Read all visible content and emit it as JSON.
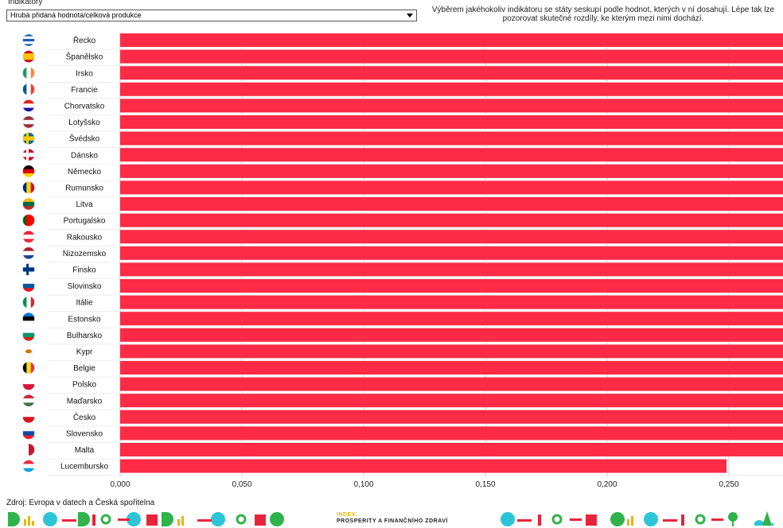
{
  "indicator": {
    "label": "Indikátory",
    "selected": "Hrubá přidaná hodnota/celková produkce"
  },
  "description": "Výběrem jakéhokoliv indikátoru se státy seskupí podle hodnot, kterých v ní dosahují. Lépe tak lze pozorovat skutečné rozdíly, ke kterým mezi nimi dochází.",
  "source": "Zdroj: Evropa v datech a Česká spořitelna",
  "brand": {
    "index": "INDEX",
    "name": "PROSPERITY A FINANČNÍHO ZDRAVÍ"
  },
  "colors": {
    "bar": "#ff2a45",
    "label_bg": "#ffffff",
    "grid": "#bbbbbb"
  },
  "chart_data": {
    "type": "bar",
    "orientation": "horizontal",
    "categories": [
      "Řecko",
      "Španělsko",
      "Irsko",
      "Francie",
      "Chorvatsko",
      "Lotyšsko",
      "Švédsko",
      "Dánsko",
      "Německo",
      "Rumunsko",
      "Litva",
      "Portugalsko",
      "Rakousko",
      "Nizozemsko",
      "Finsko",
      "Slovinsko",
      "Itálie",
      "Estonsko",
      "Bulharsko",
      "Kypr",
      "Belgie",
      "Polsko",
      "Maďarsko",
      "Česko",
      "Slovensko",
      "Malta",
      "Lucembursko"
    ],
    "values": [
      0.523,
      0.512,
      0.508,
      0.501,
      0.495,
      0.494,
      0.489,
      0.484,
      0.483,
      0.48,
      0.475,
      0.474,
      0.462,
      0.461,
      0.457,
      0.456,
      0.452,
      0.437,
      0.435,
      0.434,
      0.43,
      0.429,
      0.427,
      0.41,
      0.397,
      0.317,
      0.249
    ],
    "flags": [
      "greece-flag-icon",
      "spain-flag-icon",
      "ireland-flag-icon",
      "france-flag-icon",
      "croatia-flag-icon",
      "latvia-flag-icon",
      "sweden-flag-icon",
      "denmark-flag-icon",
      "germany-flag-icon",
      "romania-flag-icon",
      "lithuania-flag-icon",
      "portugal-flag-icon",
      "austria-flag-icon",
      "netherlands-flag-icon",
      "finland-flag-icon",
      "slovenia-flag-icon",
      "italy-flag-icon",
      "estonia-flag-icon",
      "bulgaria-flag-icon",
      "cyprus-flag-icon",
      "belgium-flag-icon",
      "poland-flag-icon",
      "hungary-flag-icon",
      "czechia-flag-icon",
      "slovakia-flag-icon",
      "malta-flag-icon",
      "luxembourg-flag-icon"
    ],
    "xlim": [
      0,
      0.55
    ],
    "xticks": [
      "0,000",
      "0,050",
      "0,100",
      "0,150",
      "0,200",
      "0,250",
      "0,300",
      "0,350",
      "0,400",
      "0,450",
      "0,500"
    ],
    "grid": true
  }
}
